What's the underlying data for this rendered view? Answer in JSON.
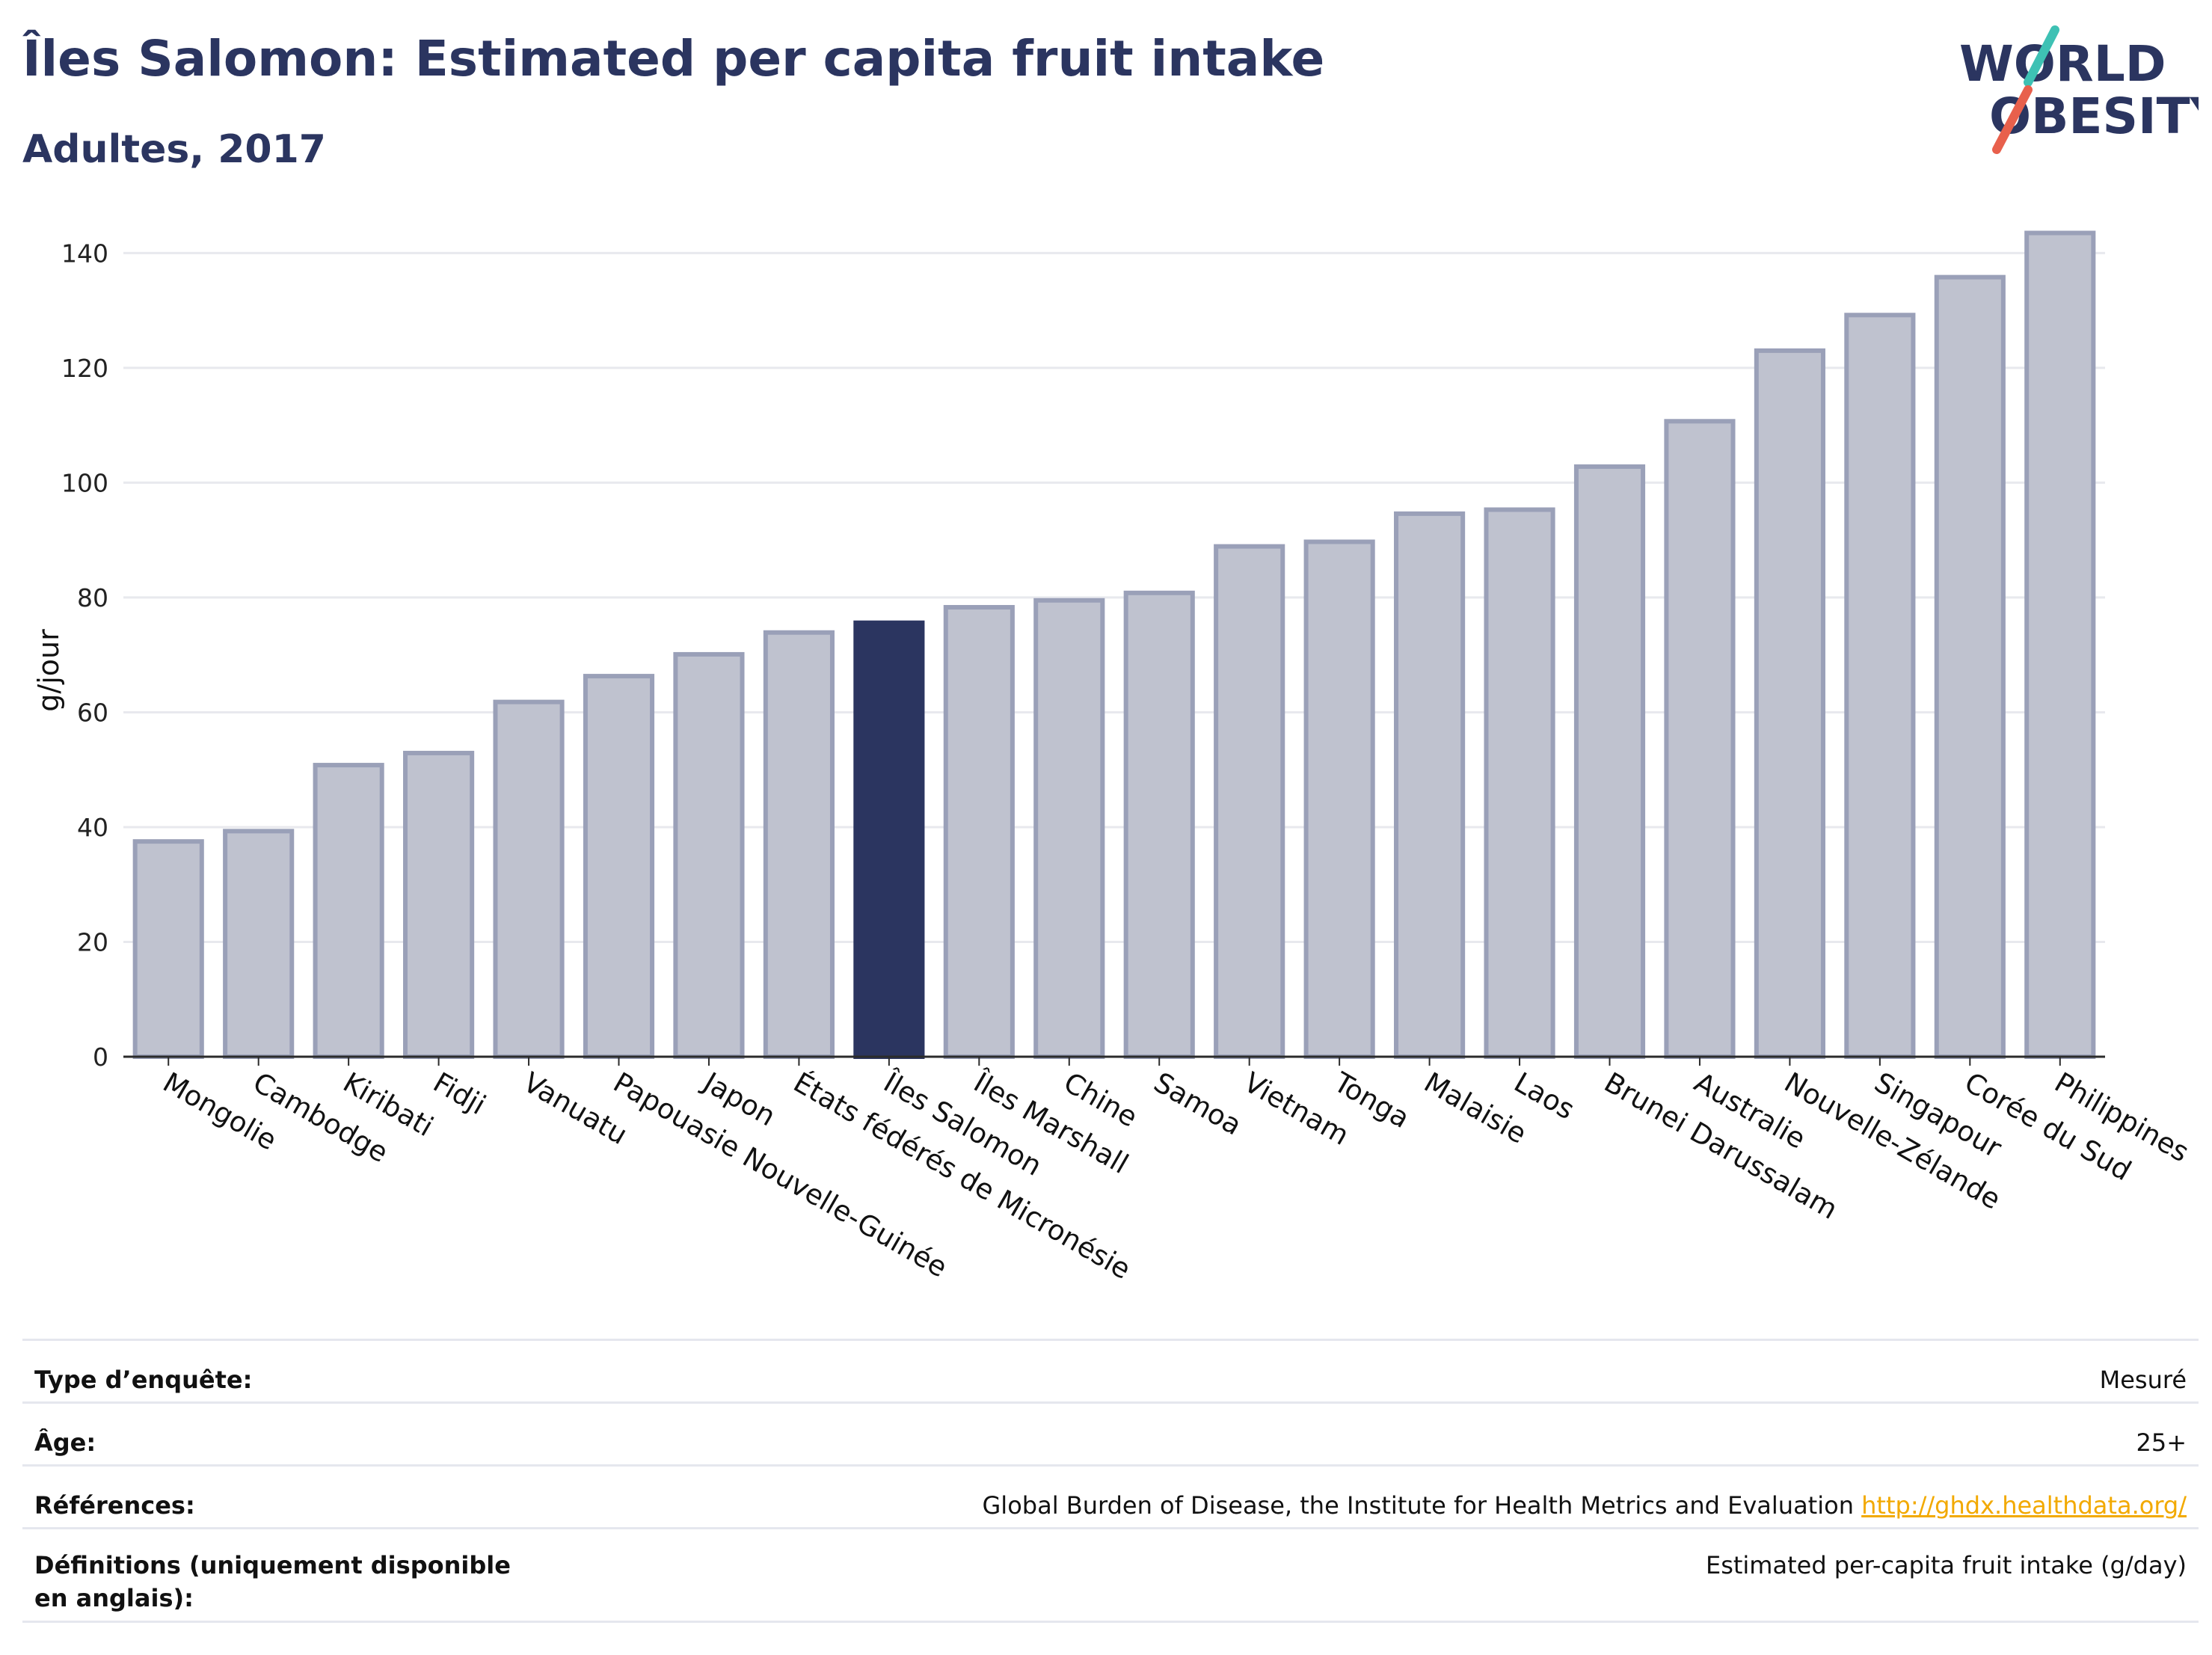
{
  "header": {
    "title": "Îles Salomon: Estimated per capita fruit intake",
    "subtitle": "Adultes, 2017",
    "logo_line1": "WORLD",
    "logo_line2": "OBESITY"
  },
  "colors": {
    "highlight": "#2b3560",
    "bar_fill": "#bfc2cf",
    "bar_stroke": "#9aa0b8",
    "grid": "#e8e9ee",
    "axis": "#2b2b2b",
    "link": "#f2a900",
    "logo_teal": "#3ec1b4",
    "logo_red": "#e8604c"
  },
  "chart_data": {
    "type": "bar",
    "ylabel": "g/jour",
    "ylim": [
      0,
      145
    ],
    "yticks": [
      0,
      20,
      40,
      60,
      80,
      100,
      120,
      140
    ],
    "grid": true,
    "highlight": "Îles Salomon",
    "categories": [
      "Mongolie",
      "Cambodge",
      "Kiribati",
      "Fidji",
      "Vanuatu",
      "Papouasie Nouvelle-Guinée",
      "Japon",
      "États fédérés de Micronésie",
      "Îles Salomon",
      "Îles Marshall",
      "Chine",
      "Samoa",
      "Vietnam",
      "Tonga",
      "Malaisie",
      "Laos",
      "Brunei Darussalam",
      "Australie",
      "Nouvelle-Zélande",
      "Singapour",
      "Corée du Sud",
      "Philippines"
    ],
    "values": [
      37.5,
      39.3,
      50.8,
      52.9,
      61.8,
      66.3,
      70.1,
      73.9,
      75.6,
      78.3,
      79.5,
      80.8,
      88.9,
      89.7,
      94.6,
      95.3,
      102.8,
      110.7,
      123.0,
      129.2,
      135.8,
      143.5
    ]
  },
  "meta": {
    "survey_type_label": "Type d’enquête:",
    "survey_type_value": "Mesuré",
    "age_label": "Âge:",
    "age_value": "25+",
    "references_label": "Références:",
    "references_text": "Global Burden of Disease, the Institute for Health Metrics and Evaluation",
    "references_link": "http://ghdx.healthdata.org/",
    "definitions_label": "Définitions (uniquement disponible en anglais):",
    "definitions_value": "Estimated per-capita fruit intake (g/day)"
  }
}
